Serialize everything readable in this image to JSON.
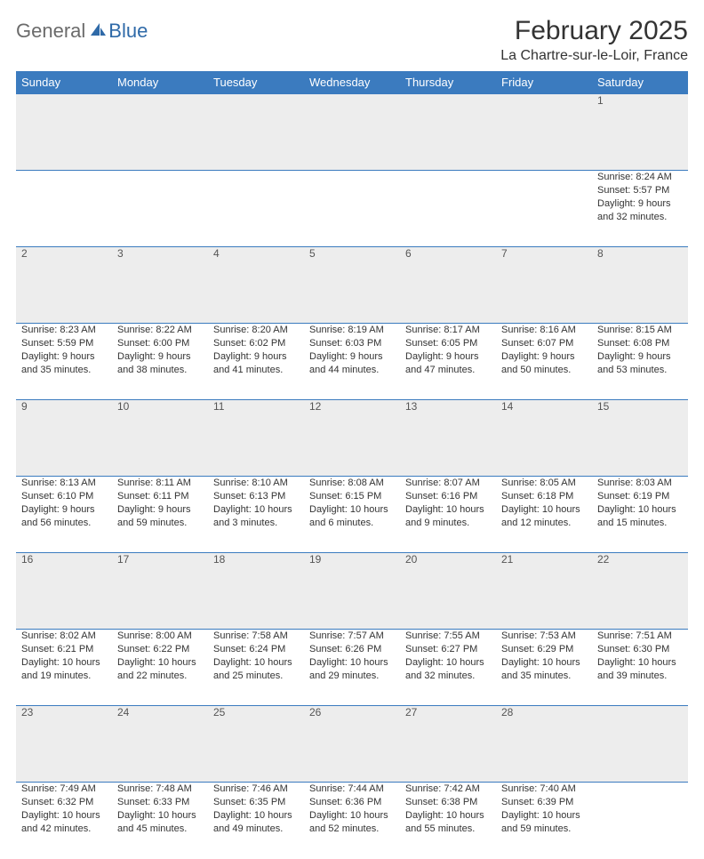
{
  "logo": {
    "part1": "General",
    "part2": "Blue"
  },
  "title": "February 2025",
  "location": "La Chartre-sur-le-Loir, France",
  "colors": {
    "header_bg": "#3b7bbf",
    "header_text": "#ffffff",
    "daynum_bg": "#ededed",
    "border": "#3b7bbf",
    "logo_gray": "#6b6b6b",
    "logo_blue": "#2f6aa8",
    "body_text": "#333333"
  },
  "day_headers": [
    "Sunday",
    "Monday",
    "Tuesday",
    "Wednesday",
    "Thursday",
    "Friday",
    "Saturday"
  ],
  "weeks": [
    {
      "nums": [
        "",
        "",
        "",
        "",
        "",
        "",
        "1"
      ],
      "cells": [
        null,
        null,
        null,
        null,
        null,
        null,
        {
          "sunrise": "8:24 AM",
          "sunset": "5:57 PM",
          "daylight": "9 hours and 32 minutes."
        }
      ]
    },
    {
      "nums": [
        "2",
        "3",
        "4",
        "5",
        "6",
        "7",
        "8"
      ],
      "cells": [
        {
          "sunrise": "8:23 AM",
          "sunset": "5:59 PM",
          "daylight": "9 hours and 35 minutes."
        },
        {
          "sunrise": "8:22 AM",
          "sunset": "6:00 PM",
          "daylight": "9 hours and 38 minutes."
        },
        {
          "sunrise": "8:20 AM",
          "sunset": "6:02 PM",
          "daylight": "9 hours and 41 minutes."
        },
        {
          "sunrise": "8:19 AM",
          "sunset": "6:03 PM",
          "daylight": "9 hours and 44 minutes."
        },
        {
          "sunrise": "8:17 AM",
          "sunset": "6:05 PM",
          "daylight": "9 hours and 47 minutes."
        },
        {
          "sunrise": "8:16 AM",
          "sunset": "6:07 PM",
          "daylight": "9 hours and 50 minutes."
        },
        {
          "sunrise": "8:15 AM",
          "sunset": "6:08 PM",
          "daylight": "9 hours and 53 minutes."
        }
      ]
    },
    {
      "nums": [
        "9",
        "10",
        "11",
        "12",
        "13",
        "14",
        "15"
      ],
      "cells": [
        {
          "sunrise": "8:13 AM",
          "sunset": "6:10 PM",
          "daylight": "9 hours and 56 minutes."
        },
        {
          "sunrise": "8:11 AM",
          "sunset": "6:11 PM",
          "daylight": "9 hours and 59 minutes."
        },
        {
          "sunrise": "8:10 AM",
          "sunset": "6:13 PM",
          "daylight": "10 hours and 3 minutes."
        },
        {
          "sunrise": "8:08 AM",
          "sunset": "6:15 PM",
          "daylight": "10 hours and 6 minutes."
        },
        {
          "sunrise": "8:07 AM",
          "sunset": "6:16 PM",
          "daylight": "10 hours and 9 minutes."
        },
        {
          "sunrise": "8:05 AM",
          "sunset": "6:18 PM",
          "daylight": "10 hours and 12 minutes."
        },
        {
          "sunrise": "8:03 AM",
          "sunset": "6:19 PM",
          "daylight": "10 hours and 15 minutes."
        }
      ]
    },
    {
      "nums": [
        "16",
        "17",
        "18",
        "19",
        "20",
        "21",
        "22"
      ],
      "cells": [
        {
          "sunrise": "8:02 AM",
          "sunset": "6:21 PM",
          "daylight": "10 hours and 19 minutes."
        },
        {
          "sunrise": "8:00 AM",
          "sunset": "6:22 PM",
          "daylight": "10 hours and 22 minutes."
        },
        {
          "sunrise": "7:58 AM",
          "sunset": "6:24 PM",
          "daylight": "10 hours and 25 minutes."
        },
        {
          "sunrise": "7:57 AM",
          "sunset": "6:26 PM",
          "daylight": "10 hours and 29 minutes."
        },
        {
          "sunrise": "7:55 AM",
          "sunset": "6:27 PM",
          "daylight": "10 hours and 32 minutes."
        },
        {
          "sunrise": "7:53 AM",
          "sunset": "6:29 PM",
          "daylight": "10 hours and 35 minutes."
        },
        {
          "sunrise": "7:51 AM",
          "sunset": "6:30 PM",
          "daylight": "10 hours and 39 minutes."
        }
      ]
    },
    {
      "nums": [
        "23",
        "24",
        "25",
        "26",
        "27",
        "28",
        ""
      ],
      "cells": [
        {
          "sunrise": "7:49 AM",
          "sunset": "6:32 PM",
          "daylight": "10 hours and 42 minutes."
        },
        {
          "sunrise": "7:48 AM",
          "sunset": "6:33 PM",
          "daylight": "10 hours and 45 minutes."
        },
        {
          "sunrise": "7:46 AM",
          "sunset": "6:35 PM",
          "daylight": "10 hours and 49 minutes."
        },
        {
          "sunrise": "7:44 AM",
          "sunset": "6:36 PM",
          "daylight": "10 hours and 52 minutes."
        },
        {
          "sunrise": "7:42 AM",
          "sunset": "6:38 PM",
          "daylight": "10 hours and 55 minutes."
        },
        {
          "sunrise": "7:40 AM",
          "sunset": "6:39 PM",
          "daylight": "10 hours and 59 minutes."
        },
        null
      ]
    }
  ],
  "labels": {
    "sunrise": "Sunrise:",
    "sunset": "Sunset:",
    "daylight": "Daylight:"
  }
}
